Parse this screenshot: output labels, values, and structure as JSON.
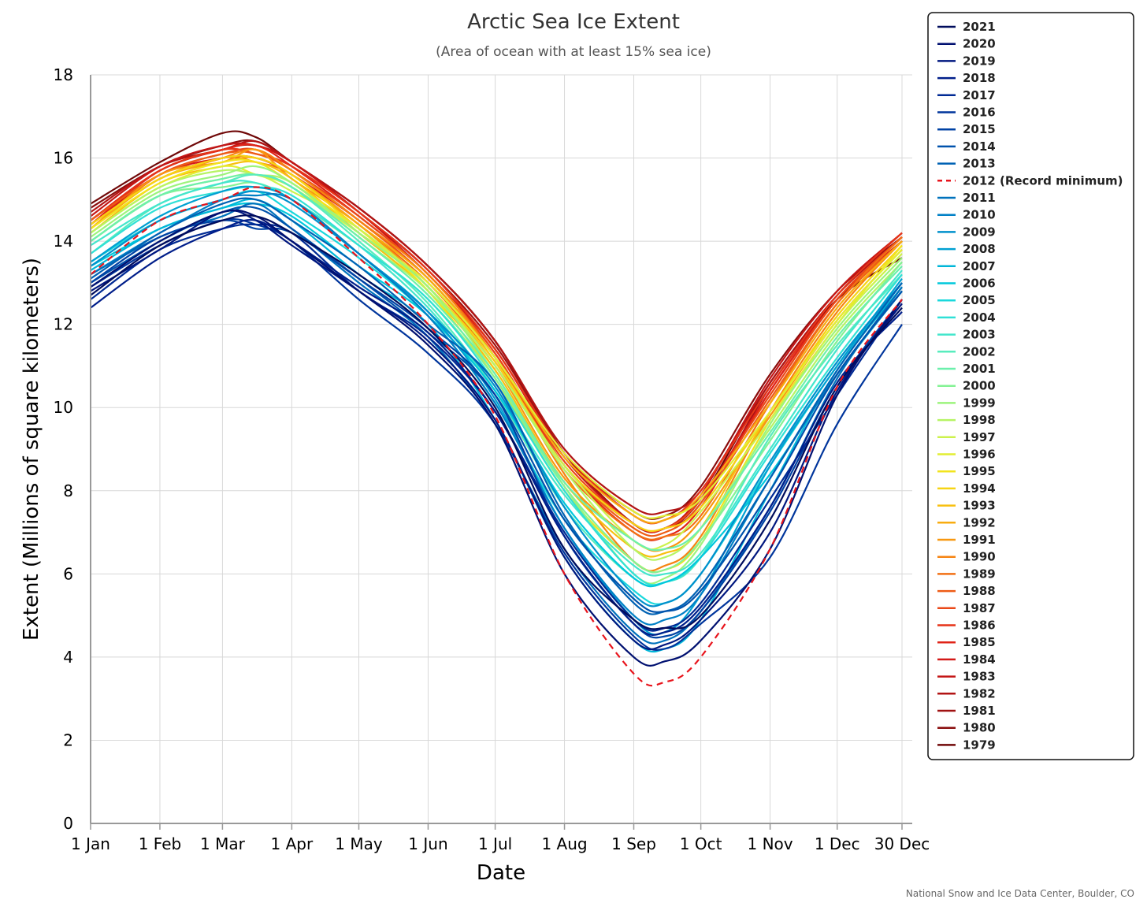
{
  "chart_data": {
    "type": "line",
    "title": "Arctic Sea Ice Extent",
    "subtitle": "(Area of ocean with at least 15% sea ice)",
    "xlabel": "Date",
    "ylabel": "Extent (Millions of square kilometers)",
    "credit": "National Snow and Ice Data Center, Boulder, CO",
    "ylim": [
      0,
      18
    ],
    "yticks": [
      0,
      2,
      4,
      6,
      8,
      10,
      12,
      14,
      16,
      18
    ],
    "xlim_day_of_year": [
      1,
      364
    ],
    "xticks": [
      {
        "day": 1,
        "label": "1 Jan"
      },
      {
        "day": 32,
        "label": "1 Feb"
      },
      {
        "day": 60,
        "label": "1 Mar"
      },
      {
        "day": 91,
        "label": "1 Apr"
      },
      {
        "day": 121,
        "label": "1 May"
      },
      {
        "day": 152,
        "label": "1 Jun"
      },
      {
        "day": 182,
        "label": "1 Jul"
      },
      {
        "day": 213,
        "label": "1 Aug"
      },
      {
        "day": 244,
        "label": "1 Sep"
      },
      {
        "day": 274,
        "label": "1 Oct"
      },
      {
        "day": 305,
        "label": "1 Nov"
      },
      {
        "day": 335,
        "label": "1 Dec"
      },
      {
        "day": 364,
        "label": "30 Dec"
      }
    ],
    "grid": true,
    "legend_position": "right",
    "x_day_of_year": [
      1,
      32,
      60,
      75,
      91,
      121,
      152,
      182,
      213,
      244,
      258,
      274,
      305,
      335,
      364
    ],
    "series": [
      {
        "name": "2021",
        "color": "#000c5c",
        "style": "solid",
        "values": [
          12.7,
          13.9,
          14.5,
          14.6,
          14.2,
          13.2,
          11.9,
          10.0,
          6.6,
          4.9,
          4.7,
          5.0,
          7.3,
          10.5,
          12.4
        ]
      },
      {
        "name": "2020",
        "color": "#001070",
        "style": "solid",
        "values": [
          12.9,
          14.0,
          14.7,
          14.6,
          14.0,
          12.8,
          11.5,
          9.6,
          6.0,
          4.0,
          3.9,
          4.4,
          6.6,
          10.3,
          12.6
        ]
      },
      {
        "name": "2019",
        "color": "#00177f",
        "style": "solid",
        "values": [
          12.8,
          13.8,
          14.7,
          14.5,
          13.9,
          12.8,
          11.6,
          9.7,
          6.4,
          4.4,
          4.3,
          4.9,
          7.0,
          10.4,
          12.5
        ]
      },
      {
        "name": "2018",
        "color": "#001e8a",
        "style": "solid",
        "values": [
          12.4,
          13.6,
          14.3,
          14.5,
          14.0,
          12.9,
          11.8,
          9.9,
          6.9,
          4.8,
          4.6,
          5.2,
          7.6,
          10.6,
          12.3
        ]
      },
      {
        "name": "2017",
        "color": "#002a94",
        "style": "solid",
        "values": [
          12.6,
          13.8,
          14.3,
          14.4,
          14.2,
          12.8,
          11.7,
          9.9,
          7.0,
          4.9,
          4.7,
          5.3,
          7.8,
          10.3,
          12.6
        ]
      },
      {
        "name": "2016",
        "color": "#00359c",
        "style": "solid",
        "values": [
          12.9,
          13.9,
          14.5,
          14.4,
          14.0,
          12.6,
          11.3,
          9.6,
          6.5,
          4.5,
          4.2,
          4.8,
          6.4,
          9.6,
          12.0
        ]
      },
      {
        "name": "2015",
        "color": "#0042a4",
        "style": "solid",
        "values": [
          13.0,
          14.1,
          14.5,
          14.3,
          14.2,
          13.1,
          11.9,
          10.3,
          6.9,
          4.8,
          4.5,
          5.1,
          7.5,
          10.5,
          12.6
        ]
      },
      {
        "name": "2014",
        "color": "#0052ac",
        "style": "solid",
        "values": [
          13.0,
          14.0,
          14.7,
          14.8,
          14.3,
          13.1,
          11.8,
          10.3,
          7.3,
          5.4,
          5.1,
          5.6,
          8.0,
          10.8,
          12.8
        ]
      },
      {
        "name": "2013",
        "color": "#0062b4",
        "style": "solid",
        "values": [
          13.1,
          14.2,
          14.9,
          15.0,
          14.5,
          13.4,
          12.0,
          10.6,
          7.4,
          5.3,
          5.1,
          5.7,
          8.3,
          10.9,
          13.0
        ]
      },
      {
        "name": "2012",
        "color": "#e8141c",
        "style": "dashed",
        "values": [
          13.2,
          14.5,
          15.0,
          15.3,
          15.0,
          13.6,
          12.0,
          9.8,
          6.0,
          3.6,
          3.4,
          4.0,
          6.6,
          10.5,
          12.6
        ]
      },
      {
        "name": "2011",
        "color": "#0072bc",
        "style": "solid",
        "values": [
          13.2,
          14.1,
          14.6,
          14.9,
          14.3,
          13.0,
          11.7,
          9.6,
          6.6,
          4.6,
          4.4,
          5.1,
          7.6,
          10.7,
          12.9
        ]
      },
      {
        "name": "2010",
        "color": "#0080c6",
        "style": "solid",
        "values": [
          13.2,
          14.2,
          15.0,
          15.1,
          15.0,
          13.7,
          12.2,
          10.1,
          7.1,
          5.0,
          4.9,
          5.5,
          8.3,
          10.8,
          12.8
        ]
      },
      {
        "name": "2009",
        "color": "#0090cc",
        "style": "solid",
        "values": [
          13.4,
          14.5,
          15.0,
          15.2,
          14.9,
          13.7,
          12.3,
          10.5,
          7.6,
          5.5,
          5.3,
          6.0,
          8.7,
          11.1,
          13.0
        ]
      },
      {
        "name": "2008",
        "color": "#00a0d2",
        "style": "solid",
        "values": [
          13.5,
          14.6,
          15.2,
          15.3,
          15.0,
          13.7,
          12.3,
          10.2,
          7.1,
          4.9,
          4.6,
          5.5,
          8.6,
          11.0,
          13.1
        ]
      },
      {
        "name": "2007",
        "color": "#00b6d8",
        "style": "solid",
        "values": [
          13.3,
          14.3,
          14.8,
          15.0,
          14.5,
          13.2,
          12.0,
          9.7,
          6.4,
          4.4,
          4.2,
          4.9,
          8.0,
          10.9,
          12.9
        ]
      },
      {
        "name": "2006",
        "color": "#00c8dc",
        "style": "solid",
        "values": [
          13.4,
          14.3,
          14.8,
          14.9,
          14.6,
          13.4,
          12.2,
          10.4,
          7.7,
          5.9,
          5.8,
          6.4,
          8.4,
          10.8,
          12.8
        ]
      },
      {
        "name": "2005",
        "color": "#1ad8dc",
        "style": "solid",
        "values": [
          13.5,
          14.5,
          15.0,
          15.2,
          14.7,
          13.6,
          12.2,
          10.1,
          7.3,
          5.6,
          5.3,
          6.0,
          8.6,
          11.0,
          13.0
        ]
      },
      {
        "name": "2004",
        "color": "#30e0d6",
        "style": "solid",
        "values": [
          13.7,
          14.8,
          15.2,
          15.3,
          15.1,
          13.9,
          12.6,
          10.6,
          8.0,
          6.0,
          5.8,
          6.4,
          8.9,
          11.2,
          13.2
        ]
      },
      {
        "name": "2003",
        "color": "#44e6cc",
        "style": "solid",
        "values": [
          13.9,
          14.9,
          15.4,
          15.4,
          15.0,
          13.9,
          12.4,
          10.4,
          7.9,
          6.2,
          6.0,
          6.5,
          9.0,
          11.4,
          13.3
        ]
      },
      {
        "name": "2002",
        "color": "#58ecbe",
        "style": "solid",
        "values": [
          13.7,
          14.9,
          15.4,
          15.6,
          15.3,
          14.0,
          12.5,
          10.4,
          7.6,
          5.9,
          5.8,
          6.4,
          9.3,
          11.5,
          13.2
        ]
      },
      {
        "name": "2001",
        "color": "#6cf0ac",
        "style": "solid",
        "values": [
          14.0,
          15.1,
          15.5,
          15.6,
          15.3,
          14.1,
          12.7,
          10.8,
          8.2,
          6.8,
          6.6,
          7.1,
          9.4,
          11.7,
          13.4
        ]
      },
      {
        "name": "2000",
        "color": "#84f294",
        "style": "solid",
        "values": [
          14.0,
          15.1,
          15.3,
          15.4,
          15.0,
          13.9,
          12.6,
          10.7,
          8.1,
          6.3,
          6.1,
          6.8,
          9.2,
          11.6,
          13.5
        ]
      },
      {
        "name": "1999",
        "color": "#9cf47c",
        "style": "solid",
        "values": [
          14.1,
          15.2,
          15.6,
          15.8,
          15.4,
          14.2,
          12.9,
          10.8,
          8.1,
          6.0,
          5.9,
          6.7,
          9.6,
          11.9,
          13.6
        ]
      },
      {
        "name": "1998",
        "color": "#b6f464",
        "style": "solid",
        "values": [
          14.2,
          15.3,
          15.7,
          15.6,
          15.4,
          14.1,
          12.8,
          11.0,
          8.5,
          6.6,
          6.4,
          7.1,
          9.5,
          11.8,
          13.5
        ]
      },
      {
        "name": "1997",
        "color": "#ccf24c",
        "style": "solid",
        "values": [
          14.0,
          15.1,
          15.5,
          15.6,
          15.2,
          14.3,
          12.9,
          11.0,
          8.6,
          6.8,
          6.7,
          7.5,
          9.7,
          12.0,
          13.7
        ]
      },
      {
        "name": "1996",
        "color": "#e2ee34",
        "style": "solid",
        "values": [
          14.2,
          15.3,
          15.8,
          15.6,
          15.3,
          14.2,
          13.0,
          11.2,
          8.9,
          7.5,
          7.4,
          7.8,
          9.9,
          12.1,
          13.8
        ]
      },
      {
        "name": "1995",
        "color": "#f2e41e",
        "style": "solid",
        "values": [
          14.3,
          15.4,
          15.9,
          15.9,
          15.4,
          14.3,
          12.8,
          10.7,
          8.0,
          6.3,
          6.1,
          6.8,
          9.7,
          12.0,
          13.9
        ]
      },
      {
        "name": "1994",
        "color": "#f6d414",
        "style": "solid",
        "values": [
          14.4,
          15.5,
          16.0,
          16.0,
          15.6,
          14.3,
          12.9,
          11.1,
          8.6,
          7.2,
          7.1,
          7.6,
          9.9,
          12.2,
          13.9
        ]
      },
      {
        "name": "1993",
        "color": "#f8c010",
        "style": "solid",
        "values": [
          14.2,
          15.4,
          15.8,
          15.9,
          15.5,
          14.2,
          12.8,
          10.9,
          8.2,
          6.6,
          6.5,
          7.1,
          9.9,
          12.1,
          13.8
        ]
      },
      {
        "name": "1992",
        "color": "#f8ac10",
        "style": "solid",
        "values": [
          14.3,
          15.5,
          15.9,
          16.0,
          15.6,
          14.4,
          13.1,
          11.2,
          8.8,
          7.4,
          7.3,
          7.9,
          10.1,
          12.4,
          14.0
        ]
      },
      {
        "name": "1991",
        "color": "#f89810",
        "style": "solid",
        "values": [
          14.3,
          15.6,
          15.9,
          16.2,
          15.5,
          14.4,
          12.9,
          11.0,
          8.3,
          6.8,
          6.6,
          7.3,
          9.8,
          12.1,
          13.8
        ]
      },
      {
        "name": "1990",
        "color": "#f68412",
        "style": "solid",
        "values": [
          14.4,
          15.5,
          16.0,
          16.2,
          15.7,
          14.5,
          13.2,
          11.2,
          8.4,
          6.3,
          6.2,
          6.9,
          9.9,
          12.3,
          14.0
        ]
      },
      {
        "name": "1989",
        "color": "#f27014",
        "style": "solid",
        "values": [
          14.4,
          15.5,
          16.0,
          15.9,
          15.6,
          14.4,
          13.0,
          11.1,
          8.5,
          7.0,
          6.9,
          7.4,
          10.1,
          12.5,
          14.1
        ]
      },
      {
        "name": "1988",
        "color": "#ee5c16",
        "style": "solid",
        "values": [
          14.5,
          15.6,
          16.1,
          16.1,
          15.7,
          14.5,
          13.1,
          11.2,
          8.6,
          7.1,
          7.0,
          7.7,
          10.2,
          12.5,
          14.0
        ]
      },
      {
        "name": "1987",
        "color": "#ea4818",
        "style": "solid",
        "values": [
          14.3,
          15.6,
          16.1,
          16.2,
          15.7,
          14.6,
          13.2,
          11.3,
          8.7,
          7.2,
          7.1,
          7.8,
          10.3,
          12.6,
          14.1
        ]
      },
      {
        "name": "1986",
        "color": "#e63418",
        "style": "solid",
        "values": [
          14.5,
          15.7,
          16.2,
          16.1,
          15.8,
          14.7,
          13.3,
          11.4,
          8.9,
          7.4,
          7.3,
          8.0,
          10.5,
          12.7,
          14.2
        ]
      },
      {
        "name": "1985",
        "color": "#e02418",
        "style": "solid",
        "values": [
          14.4,
          15.7,
          16.2,
          16.3,
          15.8,
          14.6,
          13.2,
          11.3,
          8.6,
          7.0,
          6.9,
          7.6,
          10.4,
          12.6,
          14.1
        ]
      },
      {
        "name": "1984",
        "color": "#d41a18",
        "style": "solid",
        "values": [
          14.4,
          15.6,
          16.0,
          16.0,
          15.6,
          14.5,
          13.1,
          11.2,
          8.6,
          7.2,
          7.1,
          7.8,
          10.4,
          12.6,
          14.0
        ]
      },
      {
        "name": "1983",
        "color": "#c41616",
        "style": "solid",
        "values": [
          14.6,
          15.8,
          16.3,
          16.3,
          15.9,
          14.7,
          13.2,
          11.4,
          8.8,
          7.2,
          7.1,
          7.9,
          10.7,
          12.8,
          14.2
        ]
      },
      {
        "name": "1982",
        "color": "#b21414",
        "style": "solid",
        "values": [
          14.7,
          15.8,
          16.2,
          16.4,
          15.9,
          14.8,
          13.4,
          11.6,
          9.0,
          7.6,
          7.5,
          8.0,
          10.6,
          12.7,
          14.1
        ]
      },
      {
        "name": "1981",
        "color": "#a01212",
        "style": "solid",
        "values": [
          14.5,
          15.7,
          16.2,
          16.3,
          15.9,
          14.7,
          13.3,
          11.5,
          8.9,
          7.2,
          7.1,
          7.7,
          10.5,
          12.6,
          14.0
        ]
      },
      {
        "name": "1980",
        "color": "#8a0e0e",
        "style": "solid",
        "values": [
          14.8,
          15.8,
          16.3,
          16.4,
          15.9,
          14.8,
          13.4,
          11.6,
          8.9,
          7.5,
          7.4,
          8.1,
          10.8,
          12.8,
          14.1
        ]
      },
      {
        "name": "1979",
        "color": "#700808",
        "style": "solid",
        "values": [
          14.9,
          15.9,
          16.6,
          16.5,
          15.9,
          14.8,
          13.4,
          11.6,
          8.9,
          7.2,
          7.1,
          7.8,
          10.6,
          12.6,
          13.6
        ]
      }
    ]
  },
  "legend": {
    "record_minimum_suffix": "(Record minimum)",
    "record_minimum_year": "2012"
  },
  "colors": {
    "axis_line": "#999999",
    "grid": "#d8d8d8",
    "record_minimum": "#e8141c"
  }
}
